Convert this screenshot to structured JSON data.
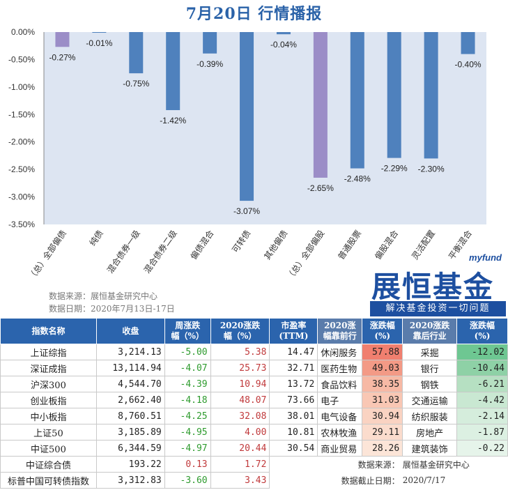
{
  "title": "7月20日  行情播报",
  "chart_data": {
    "type": "bar",
    "categories": [
      "（总）全部偏债",
      "纯债",
      "混合债券一级",
      "混合债券二级",
      "偏债混合",
      "可转债",
      "其他偏债",
      "（总）全部偏股",
      "普通股票",
      "偏股混合",
      "灵活配置",
      "平衡混合"
    ],
    "values": [
      -0.27,
      -0.01,
      -0.75,
      -1.42,
      -0.39,
      -3.07,
      -0.04,
      -2.65,
      -2.48,
      -2.29,
      -2.3,
      -0.4
    ],
    "data_labels": [
      "-0.27%",
      "-0.01%",
      "-0.75%",
      "-1.42%",
      "-0.39%",
      "-3.07%",
      "-0.04%",
      "-2.65%",
      "-2.48%",
      "-2.29%",
      "-2.30%",
      "-0.40%"
    ],
    "highlight": [
      true,
      false,
      false,
      false,
      false,
      false,
      false,
      true,
      false,
      false,
      false,
      false
    ],
    "y_ticks": [
      "0.00%",
      "-0.50%",
      "-1.00%",
      "-1.50%",
      "-2.00%",
      "-2.50%",
      "-3.00%",
      "-3.50%"
    ],
    "ylim": [
      -3.5,
      0
    ],
    "grid": false,
    "colors": {
      "bar": "#4f81bd",
      "highlight": "#9b8dc7",
      "plot_bg": "#dde5f2"
    }
  },
  "notes": {
    "source": "数据来源：展恒基金研究中心",
    "date": "数据日期：2020年7月13日-17日"
  },
  "logo": {
    "small": "myfund",
    "big": "展恒基金",
    "slogan": "解决基金投资一切问题"
  },
  "table": {
    "headers": [
      "指数名称",
      "收盘",
      "周涨跌\n幅（%）",
      "2020涨跌\n幅（%）",
      "市盈率\n(TTM)",
      "2020涨\n幅靠前行",
      "涨跌幅\n(%)",
      "2020涨跌\n靠后行业",
      "涨跌幅\n(%)"
    ],
    "rows": [
      [
        "上证综指",
        "3,214.13",
        "-5.00",
        "5.38",
        "14.47",
        "休闲服务",
        "57.88",
        "采掘",
        "-12.02"
      ],
      [
        "深证成指",
        "13,114.94",
        "-4.07",
        "25.73",
        "32.71",
        "医药生物",
        "49.03",
        "银行",
        "-10.44"
      ],
      [
        "沪深300",
        "4,544.70",
        "-4.39",
        "10.94",
        "13.72",
        "食品饮料",
        "38.35",
        "钢铁",
        "-6.21"
      ],
      [
        "创业板指",
        "2,662.40",
        "-4.18",
        "48.07",
        "73.66",
        "电子",
        "31.03",
        "交通运输",
        "-4.42"
      ],
      [
        "中小板指",
        "8,760.51",
        "-4.25",
        "32.08",
        "38.01",
        "电气设备",
        "30.94",
        "纺织服装",
        "-2.14"
      ],
      [
        "上证50",
        "3,185.89",
        "-4.95",
        "4.00",
        "10.81",
        "农林牧渔",
        "29.11",
        "房地产",
        "-1.87"
      ],
      [
        "中证500",
        "6,344.59",
        "-4.97",
        "20.44",
        "30.54",
        "商业贸易",
        "28.26",
        "建筑装饰",
        "-0.22"
      ],
      [
        "中证综合债",
        "193.22",
        "0.13",
        "1.72",
        "",
        "",
        "",
        "",
        ""
      ],
      [
        "标普中国可转债指数",
        "3,312.83",
        "-3.60",
        "3.43",
        "",
        "",
        "",
        "",
        ""
      ]
    ],
    "top_colors": [
      "#f07f6f",
      "#f39a86",
      "#f7b9a5",
      "#f9c7b4",
      "#fad3c2",
      "#fbdccd",
      "#fce5d8"
    ],
    "bottom_colors": [
      "#6ec792",
      "#8ed1a6",
      "#b6e0c2",
      "#c9e8d2",
      "#d5eddc",
      "#dcf0e2",
      "#e6f4ea"
    ],
    "footer_source_label": "数据来源：",
    "footer_source_value": "展恒基金研究中心",
    "footer_date_label": "数据截止日期：",
    "footer_date_value": "2020/7/17"
  }
}
